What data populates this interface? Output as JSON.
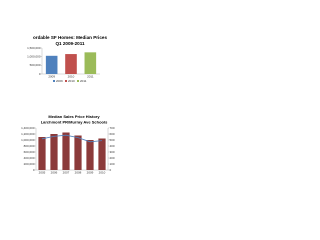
{
  "chart_data": [
    {
      "type": "bar",
      "title": "ordable SF Homes: Median Prices",
      "subtitle": "Q1 2009-2011",
      "categories": [
        "2009",
        "2010",
        "2011"
      ],
      "values": [
        1050000,
        1150000,
        1250000
      ],
      "colors": [
        "#4f81bd",
        "#c0504d",
        "#9bbb59"
      ],
      "ylim": [
        0,
        1500000
      ],
      "yticks": [
        0,
        {
          "value": 500000,
          "label": "500,000"
        },
        {
          "value": 1000000,
          "label": "1,000,000"
        },
        {
          "value": 1500000,
          "label": "1,500,000"
        }
      ],
      "grid": false,
      "legend": "bottom"
    },
    {
      "type": "combo",
      "title": "Median Sales Price History",
      "subtitle": "Larchmont PR/Murray Ave Schools",
      "categories": [
        "2005",
        "2006",
        "2007",
        "2008",
        "2009",
        "2010"
      ],
      "series": [
        {
          "type": "bar",
          "color": "#8b3a3a",
          "values": [
            1100000,
            1200000,
            1250000,
            1150000,
            1000000,
            1050000
          ]
        },
        {
          "type": "line",
          "color": "#4f81bd",
          "axis": "y2",
          "values": [
            520,
            560,
            580,
            540,
            470,
            490
          ]
        }
      ],
      "ylim": [
        0,
        1400000
      ],
      "yticks": [
        0,
        {
          "value": 200000,
          "label": "200,000"
        },
        {
          "value": 400000,
          "label": "400,000"
        },
        {
          "value": 600000,
          "label": "600,000"
        },
        {
          "value": 800000,
          "label": "800,000"
        },
        {
          "value": 1000000,
          "label": "1,000,000"
        },
        {
          "value": 1200000,
          "label": "1,200,000"
        },
        {
          "value": 1400000,
          "label": "1,400,000"
        }
      ],
      "y2lim": [
        0,
        700
      ],
      "y2ticks": [
        0,
        100,
        200,
        300,
        400,
        500,
        600,
        700
      ]
    }
  ]
}
